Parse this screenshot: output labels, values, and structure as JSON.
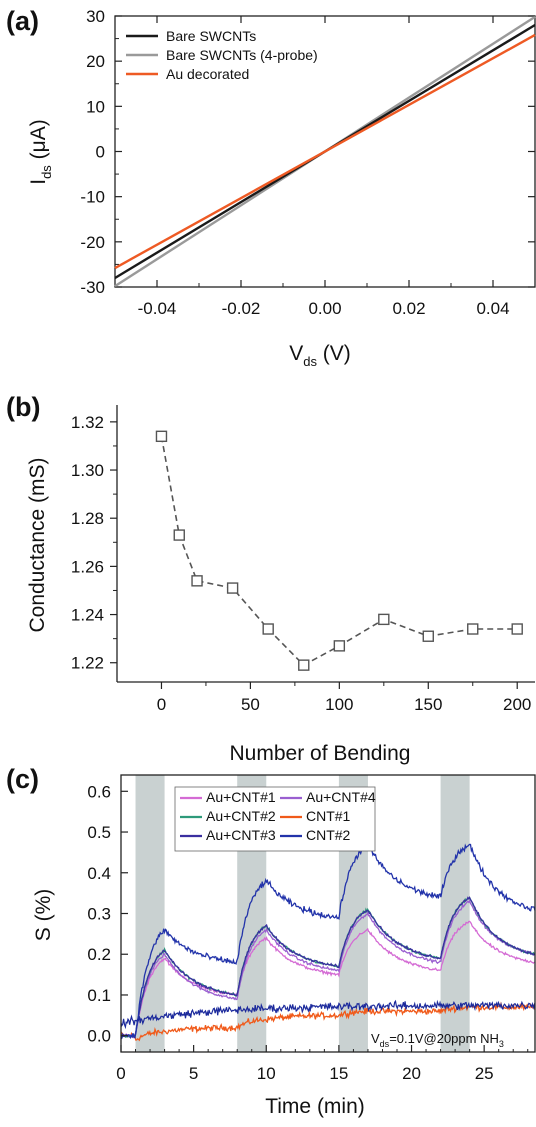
{
  "chart_data": [
    {
      "panel": "(a)",
      "type": "line",
      "xlabel": "V",
      "xlabel_sub": "ds",
      "xlabel_unit": " (V)",
      "ylabel": "I",
      "ylabel_sub": "ds",
      "ylabel_unit": " (μA)",
      "xlim": [
        -0.05,
        0.05
      ],
      "ylim": [
        -30,
        30
      ],
      "xticks": [
        -0.04,
        -0.02,
        0.0,
        0.02,
        0.04
      ],
      "xtick_labels": [
        "-0.04",
        "-0.02",
        "0.00",
        "0.02",
        "0.04"
      ],
      "yticks": [
        -30,
        -20,
        -10,
        0,
        10,
        20,
        30
      ],
      "ytick_labels": [
        "-30",
        "-20",
        "-10",
        "0",
        "10",
        "20",
        "30"
      ],
      "legend_position": "top-left",
      "series": [
        {
          "name": "Bare SWCNTs",
          "color": "#1a1a1a",
          "x": [
            -0.05,
            0.05
          ],
          "y": [
            -28,
            28
          ]
        },
        {
          "name": "Bare SWCNTs (4-probe)",
          "color": "#9a9a9a",
          "x": [
            -0.05,
            0.05
          ],
          "y": [
            -29.8,
            29.8
          ]
        },
        {
          "name": "Au decorated",
          "color": "#ee5a24",
          "x": [
            -0.05,
            0.05
          ],
          "y": [
            -25.8,
            25.8
          ]
        }
      ]
    },
    {
      "panel": "(b)",
      "type": "scatter",
      "xlabel": "Number of Bending",
      "ylabel": "Conductance (mS)",
      "xlim": [
        -25,
        210
      ],
      "ylim": [
        1.212,
        1.327
      ],
      "xticks": [
        0,
        50,
        100,
        150,
        200
      ],
      "xtick_labels": [
        "0",
        "50",
        "100",
        "150",
        "200"
      ],
      "yticks": [
        1.22,
        1.24,
        1.26,
        1.28,
        1.3,
        1.32
      ],
      "ytick_labels": [
        "1.22",
        "1.24",
        "1.26",
        "1.28",
        "1.30",
        "1.32"
      ],
      "series": [
        {
          "color": "#555555",
          "x": [
            0,
            10,
            20,
            40,
            60,
            80,
            100,
            125,
            150,
            175,
            200
          ],
          "y": [
            1.314,
            1.273,
            1.254,
            1.251,
            1.234,
            1.219,
            1.227,
            1.238,
            1.231,
            1.234,
            1.234
          ]
        }
      ]
    },
    {
      "panel": "(c)",
      "type": "line",
      "xlabel": "Time (min)",
      "ylabel": "S (%)",
      "xlim": [
        0,
        28.5
      ],
      "ylim": [
        -0.04,
        0.64
      ],
      "xticks": [
        0,
        5,
        10,
        15,
        20,
        25
      ],
      "xtick_labels": [
        "0",
        "5",
        "10",
        "15",
        "20",
        "25"
      ],
      "yticks": [
        0.0,
        0.1,
        0.2,
        0.3,
        0.4,
        0.5,
        0.6
      ],
      "ytick_labels": [
        "0.0",
        "0.1",
        "0.2",
        "0.3",
        "0.4",
        "0.5",
        "0.6"
      ],
      "exposure_intervals": [
        [
          1,
          3
        ],
        [
          8,
          10
        ],
        [
          15,
          17
        ],
        [
          22,
          24
        ]
      ],
      "exposure_color": "#c9d1d1",
      "annotation": {
        "text": "V",
        "sub": "ds",
        "text2": "=0.1V@20ppm NH",
        "sub2": "3"
      },
      "legend_position": "top",
      "series": [
        {
          "name": "Au+CNT#1",
          "color": "#d46bd4",
          "x": [
            0,
            1,
            3,
            8,
            10,
            15,
            17,
            22,
            24,
            28.5
          ],
          "y": [
            0.0,
            0.0,
            0.19,
            0.1,
            0.24,
            0.15,
            0.26,
            0.16,
            0.28,
            0.18
          ]
        },
        {
          "name": "Au+CNT#2",
          "color": "#2e9a7a",
          "x": [
            0,
            1,
            3,
            8,
            10,
            15,
            17,
            22,
            24,
            28.5
          ],
          "y": [
            0.0,
            0.0,
            0.21,
            0.1,
            0.27,
            0.17,
            0.31,
            0.19,
            0.34,
            0.2
          ]
        },
        {
          "name": "Au+CNT#3",
          "color": "#3a2fa0",
          "x": [
            0,
            1,
            3,
            8,
            10,
            15,
            17,
            22,
            24,
            28.5
          ],
          "y": [
            0.0,
            0.0,
            0.21,
            0.1,
            0.27,
            0.17,
            0.31,
            0.19,
            0.34,
            0.2
          ]
        },
        {
          "name": "Au+CNT#4",
          "color": "#9a5fd0",
          "x": [
            0,
            1,
            3,
            8,
            10,
            15,
            17,
            22,
            24,
            28.5
          ],
          "y": [
            0.0,
            0.0,
            0.2,
            0.09,
            0.26,
            0.16,
            0.3,
            0.18,
            0.33,
            0.2
          ]
        },
        {
          "name": "CNT#1",
          "color": "#f05a1a",
          "x": [
            0,
            1,
            3,
            8,
            10,
            15,
            17,
            22,
            24,
            28.5
          ],
          "y": [
            0.0,
            -0.01,
            0.01,
            0.02,
            0.04,
            0.05,
            0.06,
            0.06,
            0.07,
            0.07
          ]
        },
        {
          "name": "CNT#2",
          "color": "#2233aa",
          "x": [
            0,
            1,
            3,
            8,
            10,
            15,
            17,
            22,
            24,
            28.5
          ],
          "y": [
            0.0,
            0.0,
            0.26,
            0.18,
            0.38,
            0.29,
            0.47,
            0.34,
            0.47,
            0.31
          ]
        }
      ]
    }
  ]
}
